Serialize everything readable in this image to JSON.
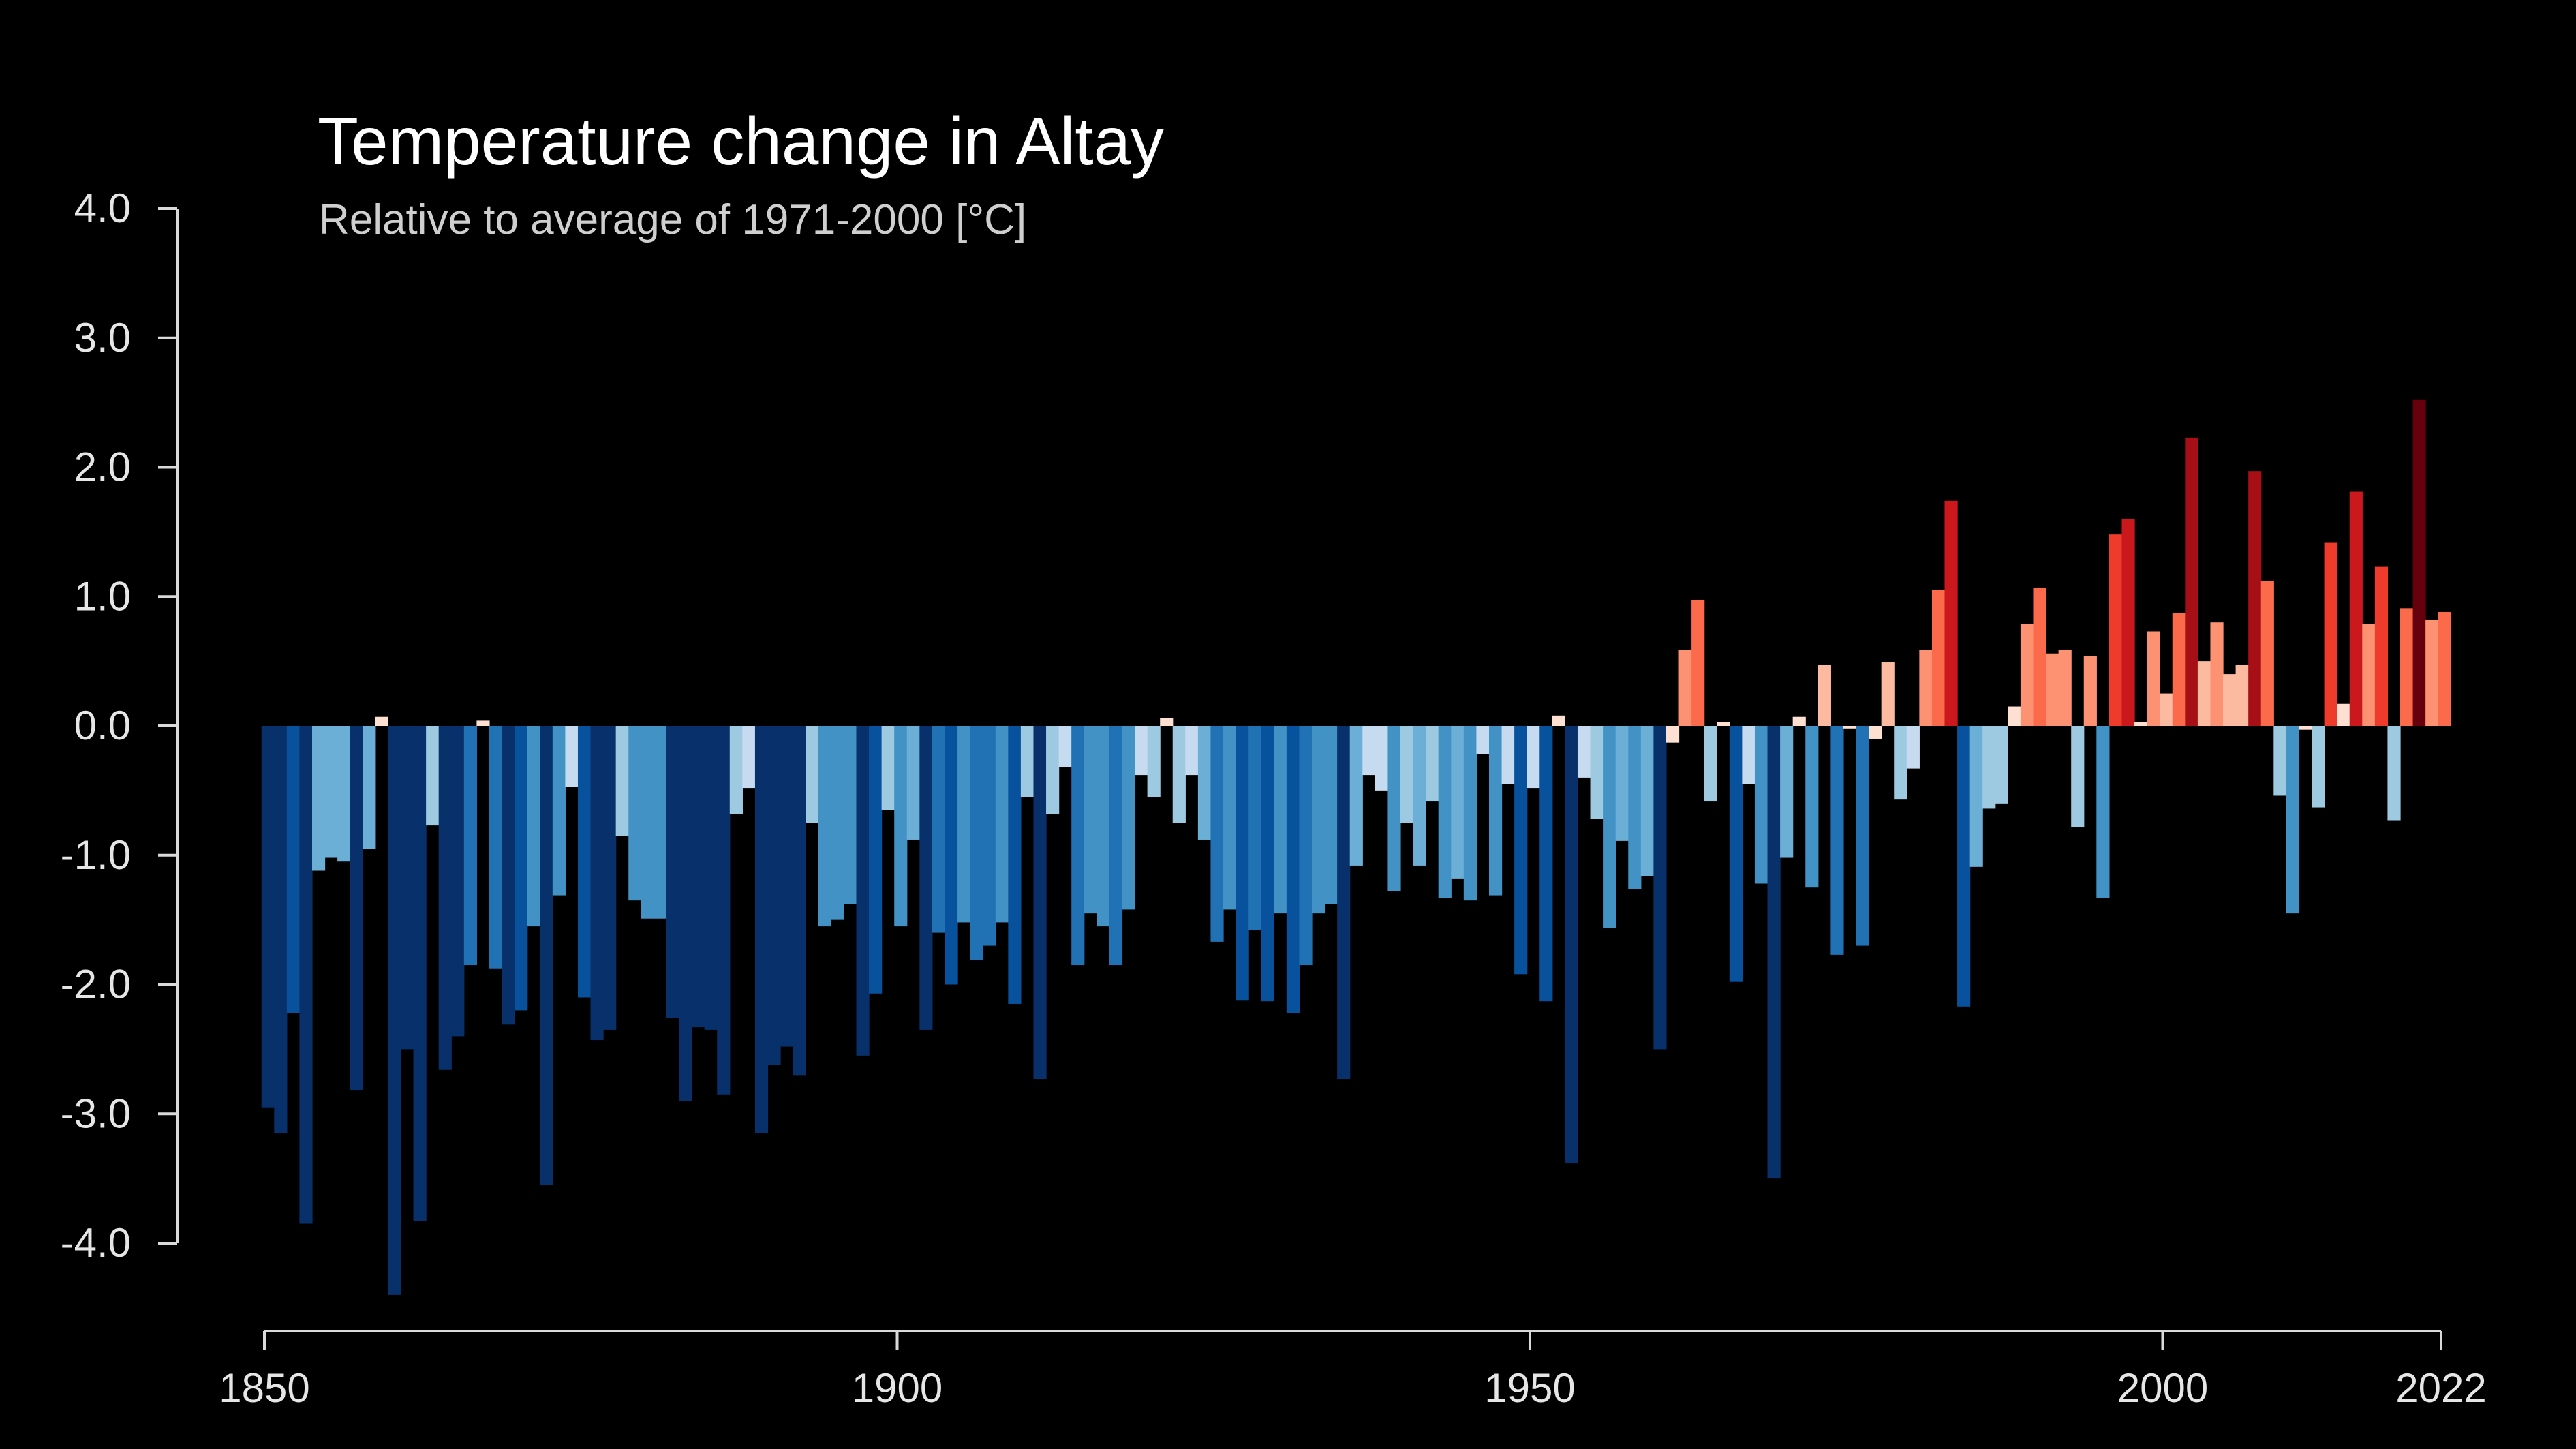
{
  "chart_data": {
    "type": "bar",
    "title": "Temperature change in Altay",
    "subtitle": "Relative to average of 1971-2000  [°C]",
    "xlabel": "",
    "ylabel": "",
    "x_start": 1850,
    "x_end": 2022,
    "xlim": [
      1850,
      2022
    ],
    "ylim": [
      -4.0,
      4.0
    ],
    "y_ticks": [
      "4.0",
      "3.0",
      "2.0",
      "1.0",
      "0.0",
      "-1.0",
      "-2.0",
      "-3.0",
      "-4.0"
    ],
    "x_ticks": [
      "1850",
      "1900",
      "1950",
      "2000",
      "2022"
    ],
    "grid": false,
    "legend": "none",
    "color_scale": [
      "#08306b",
      "#08519c",
      "#2171b5",
      "#4292c6",
      "#6baed6",
      "#9ecae1",
      "#c6dbef",
      "#fee0d2",
      "#fcbba1",
      "#fc9272",
      "#fb6a4a",
      "#ef3b2c",
      "#cb181d",
      "#a50f15",
      "#67000d"
    ],
    "background": "#000000",
    "values": [
      -2.95,
      -3.15,
      -2.22,
      -3.85,
      -1.12,
      -1.02,
      -1.05,
      -2.82,
      -0.95,
      0.07,
      -4.4,
      -2.5,
      -3.83,
      -0.77,
      -2.66,
      -2.4,
      -1.85,
      0.04,
      -1.88,
      -2.31,
      -2.2,
      -1.55,
      -3.55,
      -1.31,
      -0.47,
      -2.1,
      -2.43,
      -2.35,
      -0.85,
      -1.35,
      -1.49,
      -1.49,
      -2.26,
      -2.9,
      -2.33,
      -2.35,
      -2.85,
      -0.68,
      -0.48,
      -3.15,
      -2.62,
      -2.48,
      -2.7,
      -0.75,
      -1.55,
      -1.5,
      -1.38,
      -2.55,
      -2.07,
      -0.65,
      -1.55,
      -0.88,
      -2.35,
      -1.6,
      -2.0,
      -1.52,
      -1.81,
      -1.7,
      -1.52,
      -2.15,
      -0.55,
      -2.73,
      -0.68,
      -0.32,
      -1.85,
      -1.45,
      -1.55,
      -1.85,
      -1.42,
      -0.38,
      -0.55,
      0.06,
      -0.75,
      -0.38,
      -0.88,
      -1.67,
      -1.42,
      -2.12,
      -1.58,
      -2.13,
      -1.45,
      -2.22,
      -1.85,
      -1.45,
      -1.38,
      -2.73,
      -1.08,
      -0.38,
      -0.5,
      -1.28,
      -0.75,
      -1.08,
      -0.58,
      -1.33,
      -1.18,
      -1.35,
      -0.22,
      -1.31,
      -0.45,
      -1.92,
      -0.48,
      -2.13,
      0.08,
      -3.38,
      -0.4,
      -0.72,
      -1.56,
      -0.89,
      -1.26,
      -1.16,
      -2.5,
      -0.13,
      0.59,
      0.97,
      -0.58,
      0.03,
      -1.98,
      -0.45,
      -1.22,
      -3.5,
      -1.02,
      0.07,
      -1.25,
      0.47,
      -1.77,
      -0.02,
      -1.7,
      -0.1,
      0.49,
      -0.57,
      -0.33,
      0.59,
      1.05,
      1.74,
      -2.17,
      -1.09,
      -0.64,
      -0.6,
      0.15,
      0.79,
      1.07,
      0.56,
      0.59,
      -0.78,
      0.54,
      -1.33,
      1.48,
      1.6,
      0.03,
      0.73,
      0.25,
      0.87,
      2.23,
      0.5,
      0.8,
      0.4,
      0.47,
      1.97,
      1.12,
      -0.54,
      -1.45,
      -0.03,
      -0.63,
      1.42,
      0.17,
      1.81,
      0.79,
      1.23,
      -0.73,
      0.91,
      2.52,
      0.82,
      0.88
    ]
  }
}
